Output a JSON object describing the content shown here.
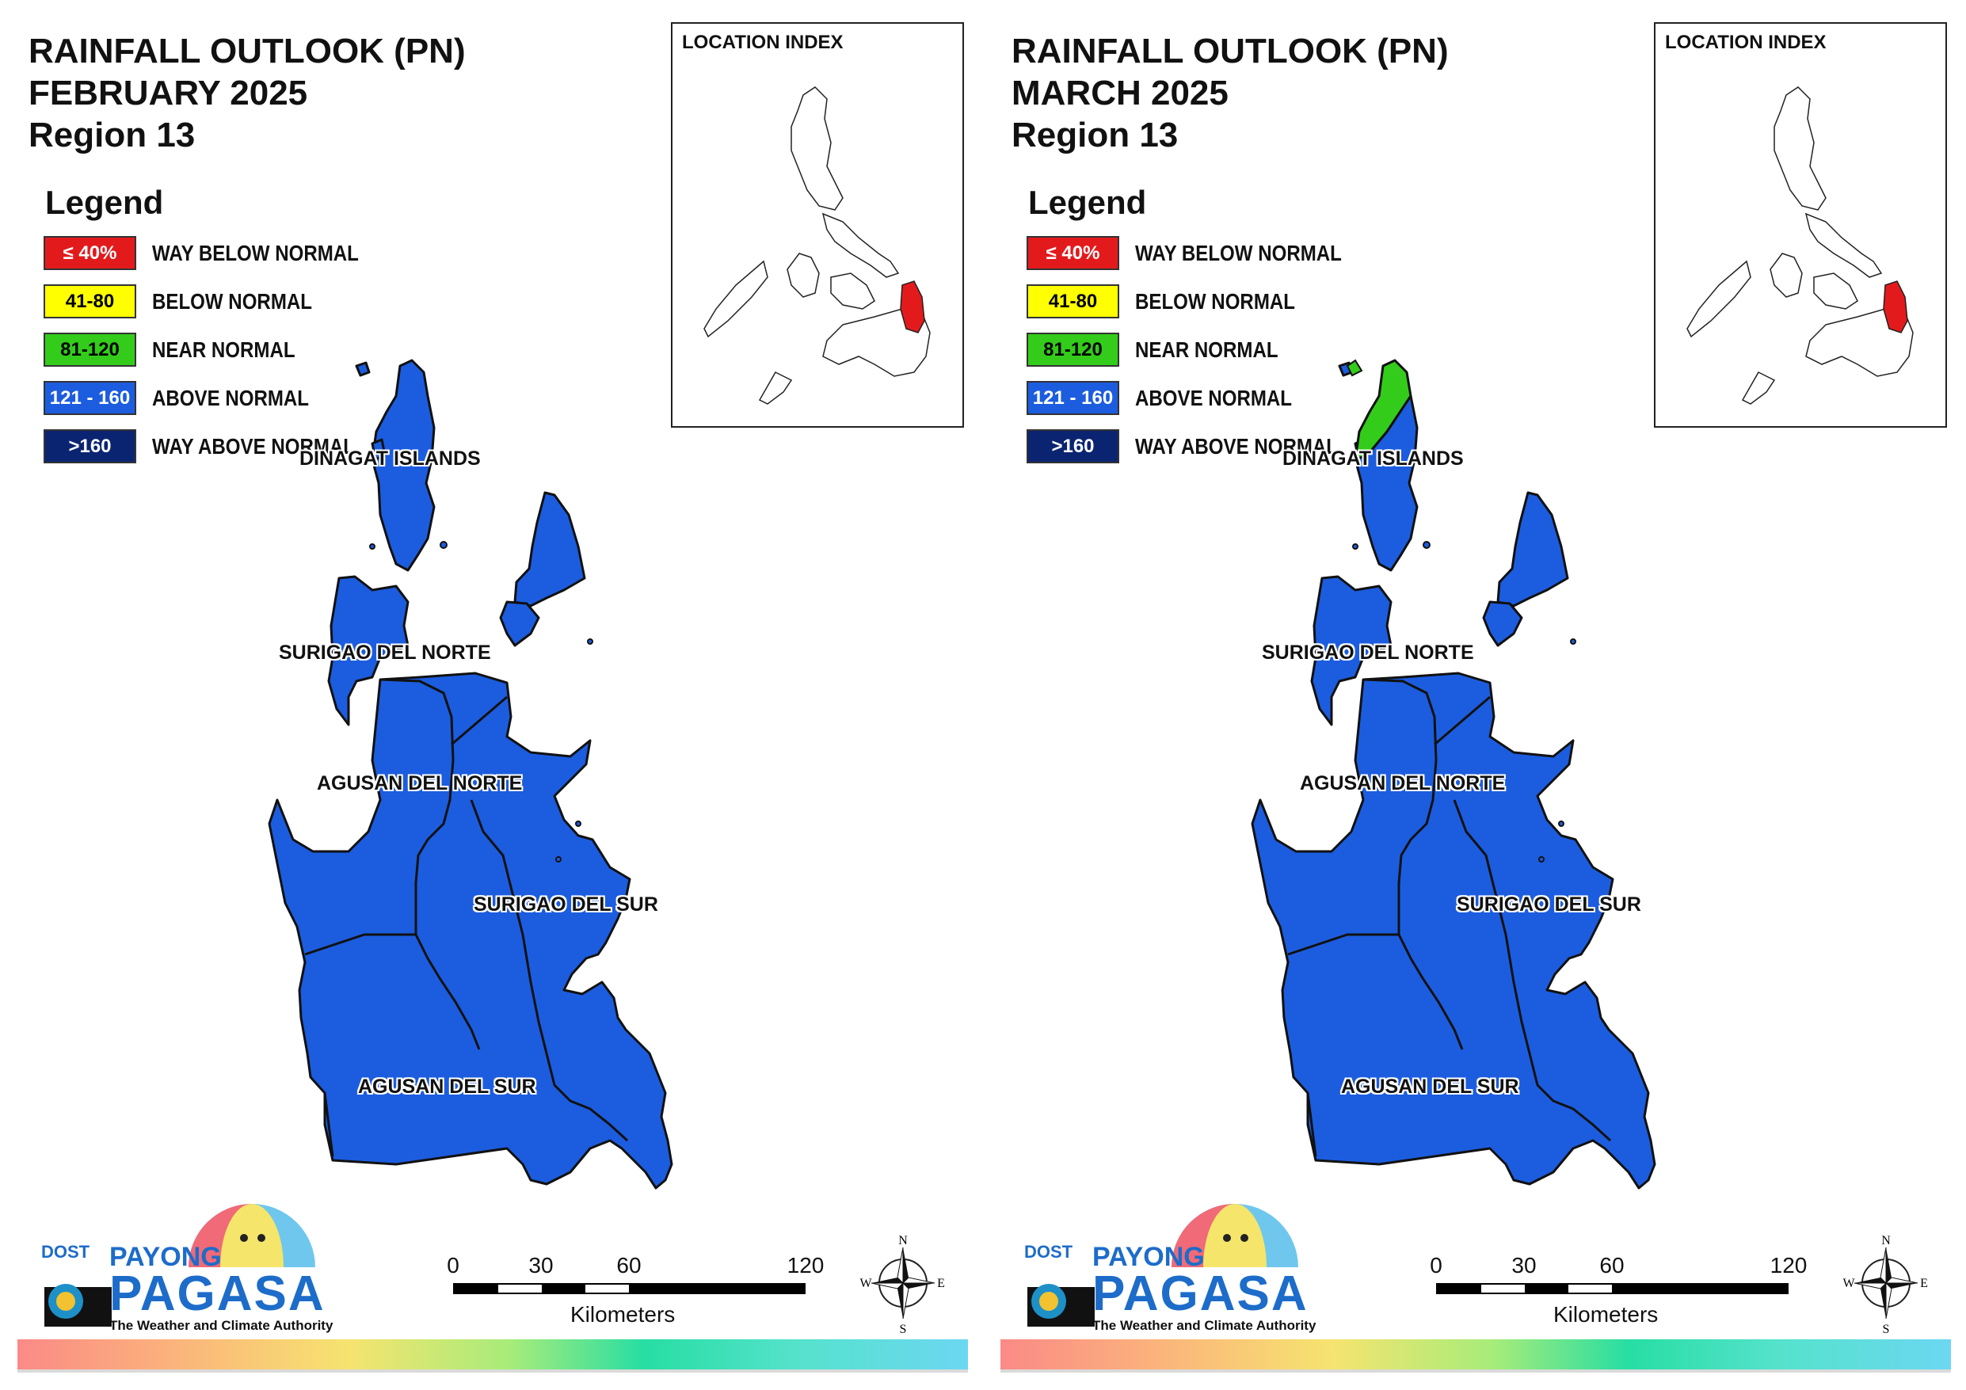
{
  "panels": [
    {
      "title_line1": "RAINFALL OUTLOOK (PN)",
      "title_line2": "FEBRUARY 2025",
      "title_line3": "Region 13",
      "dinagat_category": "above"
    },
    {
      "title_line1": "RAINFALL OUTLOOK (PN)",
      "title_line2": "MARCH 2025",
      "title_line3": "Region 13",
      "dinagat_category": "near-above-split"
    }
  ],
  "legend": {
    "heading": "Legend",
    "items": [
      {
        "range": "≤ 40%",
        "label": "WAY BELOW NORMAL",
        "color": "#e31a1c",
        "text_color": "#ffffff"
      },
      {
        "range": "41-80",
        "label": "BELOW NORMAL",
        "color": "#ffff00",
        "text_color": "#000000"
      },
      {
        "range": "81-120",
        "label": "NEAR NORMAL",
        "color": "#33cc1a",
        "text_color": "#000000"
      },
      {
        "range": "121 - 160",
        "label": "ABOVE NORMAL",
        "color": "#1c5ddf",
        "text_color": "#ffffff"
      },
      {
        "range": ">160",
        "label": "WAY ABOVE NORMAL",
        "color": "#0b2472",
        "text_color": "#ffffff"
      }
    ]
  },
  "provinces": {
    "dinagat": "DINAGAT ISLANDS",
    "surigao_norte": "SURIGAO DEL NORTE",
    "agusan_norte": "AGUSAN DEL NORTE",
    "surigao_sur": "SURIGAO DEL SUR",
    "agusan_sur": "AGUSAN DEL SUR"
  },
  "inset": {
    "title": "LOCATION INDEX",
    "highlight_color": "#e31a1c"
  },
  "scale_bar": {
    "ticks": [
      "0",
      "30",
      "60",
      "120"
    ],
    "unit": "Kilometers"
  },
  "compass": {
    "n": "N",
    "s": "S",
    "e": "E",
    "w": "W"
  },
  "logo": {
    "dost": "DOST",
    "payong": "PAYONG",
    "pagasa": "PAGASA",
    "tagline": "The Weather and Climate Authority"
  },
  "colors": {
    "region_fill": "#1c5ddf",
    "near_normal": "#33cc1a",
    "outline": "#111111"
  }
}
